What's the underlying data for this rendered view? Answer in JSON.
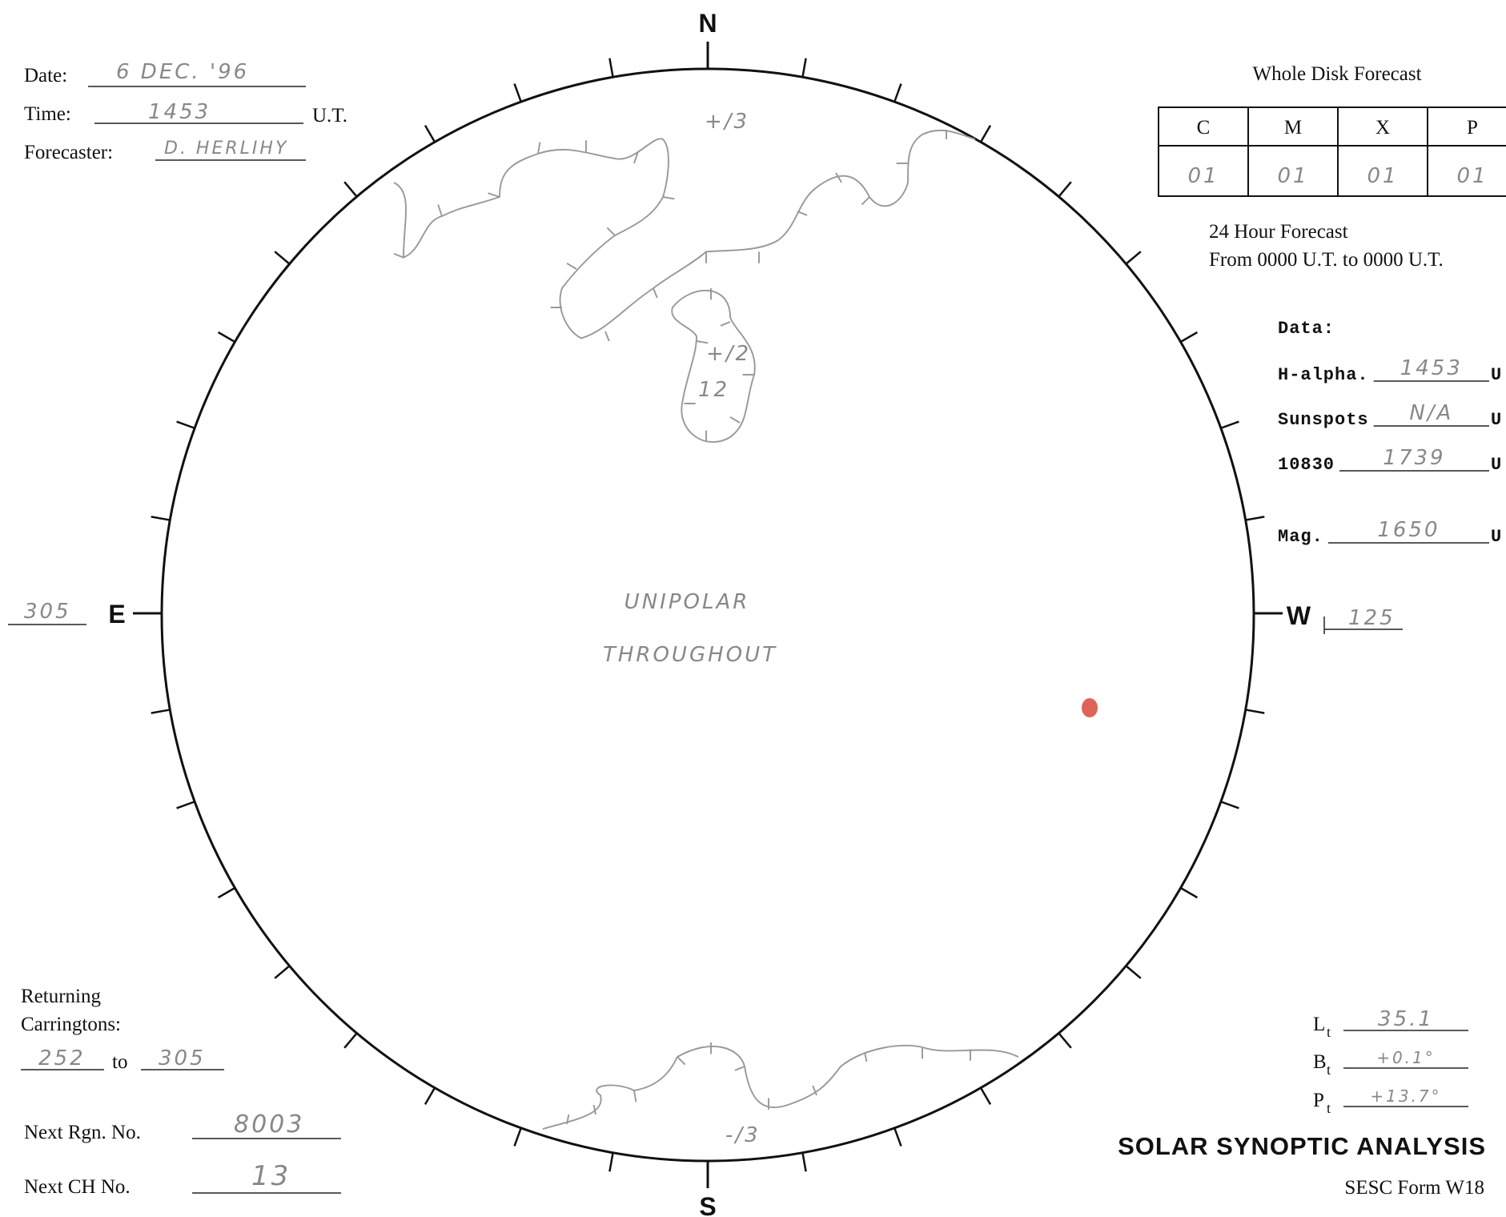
{
  "header": {
    "date": {
      "label": "Date:",
      "value": "6 DEC. '96"
    },
    "time": {
      "label": "Time:",
      "value": "1453",
      "unit": "U.T."
    },
    "forecaster": {
      "label": "Forecaster:",
      "value": "D. HERLIHY"
    }
  },
  "compass": {
    "north": "N",
    "south": "S",
    "east": "E",
    "west": "W"
  },
  "longitudes": {
    "east": "305",
    "west": "125"
  },
  "whole_disk_forecast": {
    "title": "Whole Disk Forecast",
    "columns": [
      "C",
      "M",
      "X",
      "P"
    ],
    "values": [
      "01",
      "01",
      "01",
      "01"
    ],
    "period_title": "24 Hour Forecast",
    "period": "From 0000 U.T. to 0000 U.T."
  },
  "data": {
    "title": "Data:",
    "rows": [
      {
        "label": "H-alpha.",
        "value": "1453",
        "unit": "U"
      },
      {
        "label": "Sunspots",
        "value": "N/A",
        "unit": "U"
      },
      {
        "label": "10830",
        "value": "1739",
        "unit": "U"
      },
      {
        "label": "Mag.",
        "value": "1650",
        "unit": "U"
      }
    ]
  },
  "disk_annotations": {
    "north_hole": "+/3",
    "small_hole_polarity": "+/2",
    "small_hole_number": "12",
    "note_line1": "UNIPOLAR",
    "note_line2": "THROUGHOUT",
    "south_hole": "-/3"
  },
  "returning": {
    "label_line1": "Returning",
    "label_line2": "Carringtons:",
    "from": "252",
    "to_word": "to",
    "to": "305"
  },
  "next_region": {
    "label": "Next Rgn. No.",
    "value": "8003"
  },
  "next_ch": {
    "label": "Next CH No.",
    "value": "13"
  },
  "orientation": [
    {
      "label": "L",
      "sub": "t",
      "value": "35.1"
    },
    {
      "label": "B",
      "sub": "t",
      "value": "+0.1°"
    },
    {
      "label": "P",
      "sub": "t",
      "value": "+13.7°"
    }
  ],
  "footer": {
    "title": "SOLAR SYNOPTIC ANALYSIS",
    "form": "SESC Form W18"
  }
}
